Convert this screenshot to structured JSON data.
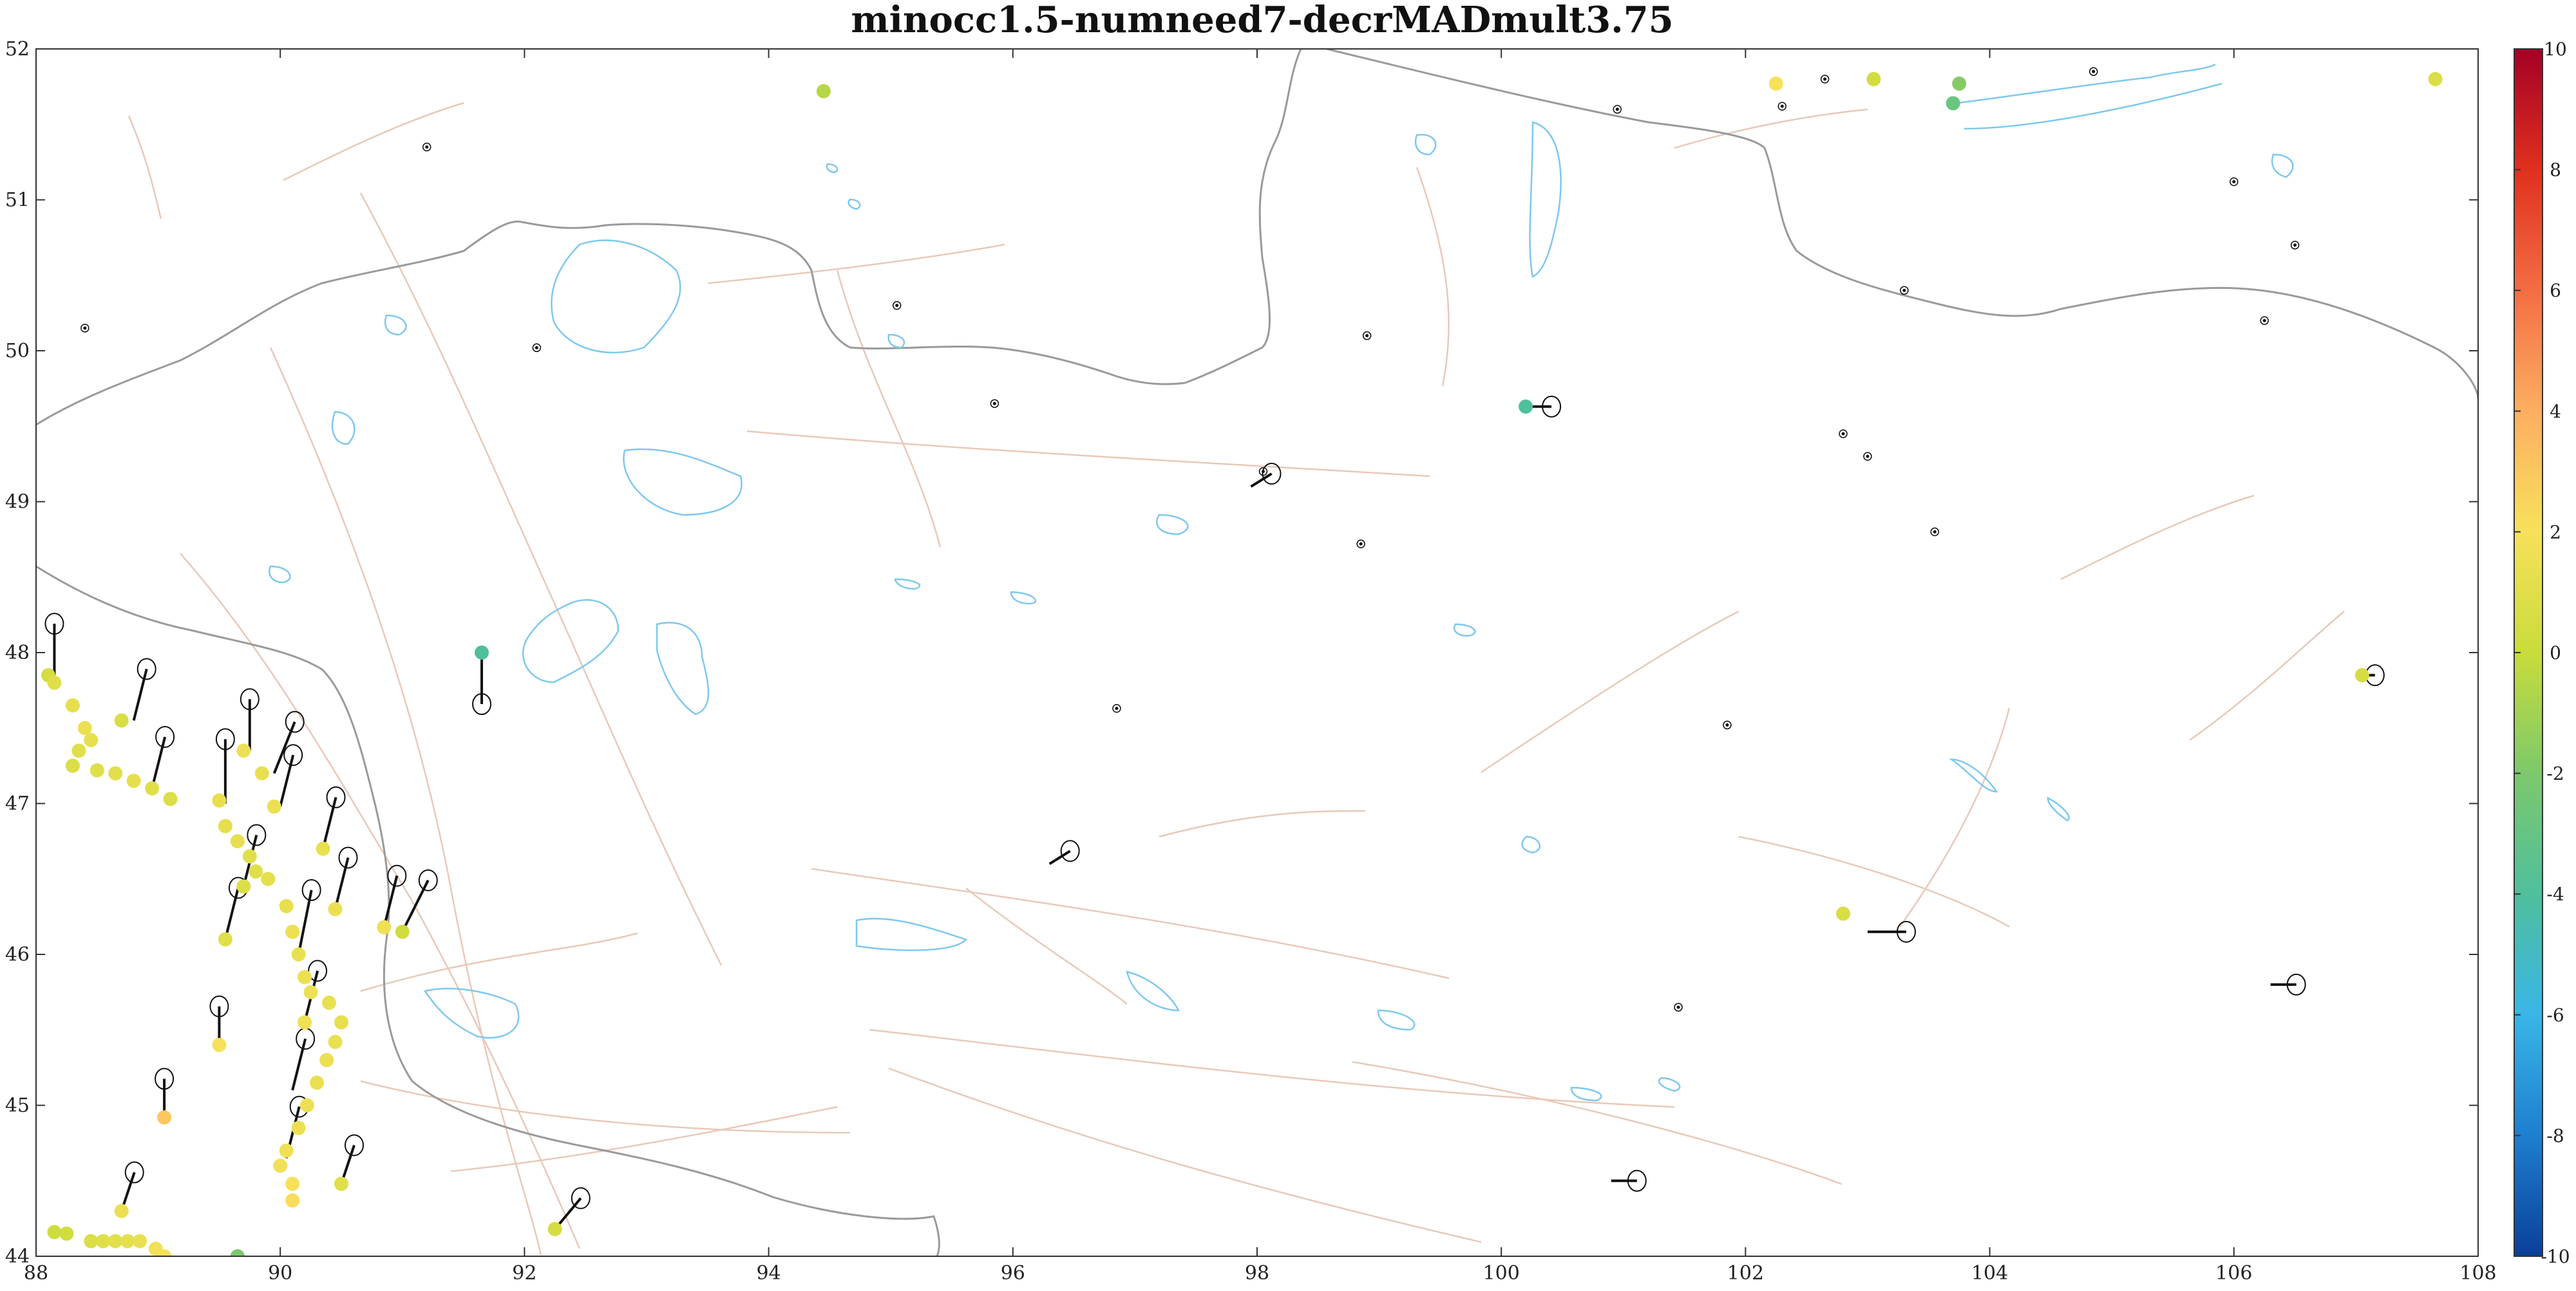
{
  "title": "minocc1.5-numneed7-decrMADmult3.75",
  "map": {
    "lon_range": [
      88,
      108
    ],
    "lat_range": [
      44,
      52
    ],
    "lon_ticks": [
      "88",
      "90",
      "92",
      "94",
      "96",
      "98",
      "100",
      "102",
      "104",
      "106",
      "108"
    ],
    "lat_ticks": [
      "44",
      "45",
      "46",
      "47",
      "48",
      "49",
      "50",
      "51",
      "52"
    ]
  },
  "colorbar": {
    "range": [
      -10,
      10
    ],
    "ticks": [
      "10",
      "8",
      "6",
      "4",
      "2",
      "0",
      "-2",
      "-4",
      "-6",
      "-8",
      "-10"
    ],
    "colors": [
      "#a50026",
      "#e0301e",
      "#f46d43",
      "#fdae61",
      "#f7e15a",
      "#c9dc3a",
      "#7cc96b",
      "#4fbf9c",
      "#38b6e8",
      "#1d7fd0",
      "#0a3f9a"
    ]
  },
  "colors": {
    "border": "#9a9a9a",
    "lakes": "#7fc8ee",
    "faults": "#e8c9b8",
    "vectors": "#111111"
  },
  "chart_data": {
    "type": "scatter",
    "xlabel": "",
    "ylabel": "",
    "xlim": [
      88,
      108
    ],
    "ylim": [
      44,
      52
    ],
    "color_scale": [
      -10,
      10
    ],
    "stations": [
      {
        "lon": 88.1,
        "lat": 47.85,
        "value": 0.5
      },
      {
        "lon": 88.15,
        "lat": 47.8,
        "value": 1.0
      },
      {
        "lon": 88.3,
        "lat": 47.65,
        "value": 1.2
      },
      {
        "lon": 88.4,
        "lat": 47.5,
        "value": 1.5
      },
      {
        "lon": 88.45,
        "lat": 47.42,
        "value": 1.3
      },
      {
        "lon": 88.35,
        "lat": 47.35,
        "value": 1.0
      },
      {
        "lon": 88.3,
        "lat": 47.25,
        "value": 0.8
      },
      {
        "lon": 88.5,
        "lat": 47.22,
        "value": 1.0
      },
      {
        "lon": 88.65,
        "lat": 47.2,
        "value": 1.1
      },
      {
        "lon": 88.8,
        "lat": 47.15,
        "value": 1.2
      },
      {
        "lon": 88.95,
        "lat": 47.1,
        "value": 1.0
      },
      {
        "lon": 89.1,
        "lat": 47.03,
        "value": 0.8
      },
      {
        "lon": 88.7,
        "lat": 47.55,
        "value": 0.6
      },
      {
        "lon": 89.7,
        "lat": 47.35,
        "value": 1.6
      },
      {
        "lon": 89.85,
        "lat": 47.2,
        "value": 1.4
      },
      {
        "lon": 89.5,
        "lat": 47.02,
        "value": 1.3
      },
      {
        "lon": 89.95,
        "lat": 46.98,
        "value": 1.5
      },
      {
        "lon": 89.55,
        "lat": 46.85,
        "value": 1.2
      },
      {
        "lon": 89.65,
        "lat": 46.75,
        "value": 1.3
      },
      {
        "lon": 89.75,
        "lat": 46.65,
        "value": 1.1
      },
      {
        "lon": 89.8,
        "lat": 46.55,
        "value": 1.0
      },
      {
        "lon": 89.9,
        "lat": 46.5,
        "value": 1.2
      },
      {
        "lon": 89.7,
        "lat": 46.45,
        "value": 0.9
      },
      {
        "lon": 90.35,
        "lat": 46.7,
        "value": 1.4
      },
      {
        "lon": 90.05,
        "lat": 46.32,
        "value": 1.3
      },
      {
        "lon": 90.1,
        "lat": 46.15,
        "value": 1.5
      },
      {
        "lon": 90.15,
        "lat": 46.0,
        "value": 1.4
      },
      {
        "lon": 90.2,
        "lat": 45.85,
        "value": 1.5
      },
      {
        "lon": 90.25,
        "lat": 45.75,
        "value": 1.6
      },
      {
        "lon": 90.45,
        "lat": 46.3,
        "value": 1.5
      },
      {
        "lon": 89.55,
        "lat": 46.1,
        "value": 1.0
      },
      {
        "lon": 90.85,
        "lat": 46.18,
        "value": 1.7
      },
      {
        "lon": 91.0,
        "lat": 46.15,
        "value": 0.3
      },
      {
        "lon": 90.4,
        "lat": 45.68,
        "value": 1.4
      },
      {
        "lon": 90.5,
        "lat": 45.55,
        "value": 1.3
      },
      {
        "lon": 90.45,
        "lat": 45.42,
        "value": 1.4
      },
      {
        "lon": 90.38,
        "lat": 45.3,
        "value": 1.5
      },
      {
        "lon": 90.3,
        "lat": 45.15,
        "value": 1.4
      },
      {
        "lon": 90.22,
        "lat": 45.0,
        "value": 1.6
      },
      {
        "lon": 90.15,
        "lat": 44.85,
        "value": 1.5
      },
      {
        "lon": 90.05,
        "lat": 44.7,
        "value": 1.7
      },
      {
        "lon": 90.0,
        "lat": 44.6,
        "value": 1.8
      },
      {
        "lon": 90.2,
        "lat": 45.55,
        "value": 1.7
      },
      {
        "lon": 89.5,
        "lat": 45.4,
        "value": 2.0
      },
      {
        "lon": 89.05,
        "lat": 44.92,
        "value": 3.0
      },
      {
        "lon": 90.1,
        "lat": 44.48,
        "value": 2.0
      },
      {
        "lon": 90.1,
        "lat": 44.37,
        "value": 2.2
      },
      {
        "lon": 90.5,
        "lat": 44.48,
        "value": 1.0
      },
      {
        "lon": 88.15,
        "lat": 44.16,
        "value": 0.2
      },
      {
        "lon": 88.25,
        "lat": 44.15,
        "value": 0.3
      },
      {
        "lon": 88.45,
        "lat": 44.1,
        "value": 0.8
      },
      {
        "lon": 88.55,
        "lat": 44.1,
        "value": 1.0
      },
      {
        "lon": 88.65,
        "lat": 44.1,
        "value": 1.1
      },
      {
        "lon": 88.75,
        "lat": 44.1,
        "value": 1.2
      },
      {
        "lon": 88.85,
        "lat": 44.1,
        "value": 1.4
      },
      {
        "lon": 88.98,
        "lat": 44.05,
        "value": 1.8
      },
      {
        "lon": 89.05,
        "lat": 44.0,
        "value": 2.0
      },
      {
        "lon": 88.7,
        "lat": 44.3,
        "value": 1.5
      },
      {
        "lon": 89.65,
        "lat": 44.0,
        "value": -2.0
      },
      {
        "lon": 92.25,
        "lat": 44.18,
        "value": 0.5
      },
      {
        "lon": 91.65,
        "lat": 48.0,
        "value": -4.0
      },
      {
        "lon": 94.45,
        "lat": 51.72,
        "value": -0.5
      },
      {
        "lon": 100.2,
        "lat": 49.63,
        "value": -4.0
      },
      {
        "lon": 102.25,
        "lat": 51.77,
        "value": 2.0
      },
      {
        "lon": 103.05,
        "lat": 51.8,
        "value": 0.4
      },
      {
        "lon": 103.7,
        "lat": 51.64,
        "value": -2.8
      },
      {
        "lon": 103.75,
        "lat": 51.77,
        "value": -1.8
      },
      {
        "lon": 107.65,
        "lat": 51.8,
        "value": 0.8
      },
      {
        "lon": 102.8,
        "lat": 46.27,
        "value": 0.7
      },
      {
        "lon": 107.05,
        "lat": 47.85,
        "value": 0.5
      }
    ],
    "velocity_vectors": [
      {
        "lon": 88.15,
        "lat": 47.85,
        "dx": 0.0,
        "dy": 0.2
      },
      {
        "lon": 88.8,
        "lat": 47.55,
        "dx": 0.05,
        "dy": 0.2
      },
      {
        "lon": 88.95,
        "lat": 47.1,
        "dx": 0.05,
        "dy": 0.2
      },
      {
        "lon": 89.75,
        "lat": 47.35,
        "dx": 0.0,
        "dy": 0.2
      },
      {
        "lon": 89.95,
        "lat": 47.2,
        "dx": 0.08,
        "dy": 0.2
      },
      {
        "lon": 89.55,
        "lat": 47.0,
        "dx": 0.0,
        "dy": 0.25
      },
      {
        "lon": 90.0,
        "lat": 46.98,
        "dx": 0.05,
        "dy": 0.2
      },
      {
        "lon": 89.7,
        "lat": 46.45,
        "dx": 0.05,
        "dy": 0.2
      },
      {
        "lon": 90.35,
        "lat": 46.7,
        "dx": 0.05,
        "dy": 0.2
      },
      {
        "lon": 90.45,
        "lat": 46.3,
        "dx": 0.05,
        "dy": 0.2
      },
      {
        "lon": 89.55,
        "lat": 46.1,
        "dx": 0.05,
        "dy": 0.2
      },
      {
        "lon": 90.85,
        "lat": 46.18,
        "dx": 0.05,
        "dy": 0.2
      },
      {
        "lon": 91.0,
        "lat": 46.15,
        "dx": 0.1,
        "dy": 0.2
      },
      {
        "lon": 90.15,
        "lat": 46.0,
        "dx": 0.05,
        "dy": 0.25
      },
      {
        "lon": 90.2,
        "lat": 45.55,
        "dx": 0.05,
        "dy": 0.2
      },
      {
        "lon": 89.5,
        "lat": 45.4,
        "dx": 0.0,
        "dy": 0.15
      },
      {
        "lon": 90.1,
        "lat": 45.1,
        "dx": 0.05,
        "dy": 0.2
      },
      {
        "lon": 89.05,
        "lat": 44.92,
        "dx": 0.0,
        "dy": 0.15
      },
      {
        "lon": 90.05,
        "lat": 44.65,
        "dx": 0.05,
        "dy": 0.2
      },
      {
        "lon": 90.5,
        "lat": 44.48,
        "dx": 0.05,
        "dy": 0.15
      },
      {
        "lon": 88.7,
        "lat": 44.3,
        "dx": 0.05,
        "dy": 0.15
      },
      {
        "lon": 92.25,
        "lat": 44.18,
        "dx": 0.1,
        "dy": 0.12
      },
      {
        "lon": 91.65,
        "lat": 48.0,
        "dx": 0.0,
        "dy": -0.2
      },
      {
        "lon": 100.2,
        "lat": 49.63,
        "dx": 0.1,
        "dy": 0.0
      },
      {
        "lon": 97.95,
        "lat": 49.1,
        "dx": 0.08,
        "dy": 0.05
      },
      {
        "lon": 96.3,
        "lat": 46.6,
        "dx": 0.08,
        "dy": 0.05
      },
      {
        "lon": 103.0,
        "lat": 46.15,
        "dx": 0.15,
        "dy": 0.0
      },
      {
        "lon": 100.9,
        "lat": 44.5,
        "dx": 0.1,
        "dy": 0.0
      },
      {
        "lon": 107.05,
        "lat": 47.85,
        "dx": 0.05,
        "dy": 0.0
      },
      {
        "lon": 106.3,
        "lat": 45.8,
        "dx": 0.1,
        "dy": 0.0
      }
    ],
    "small_sites": [
      [
        91.2,
        51.35
      ],
      [
        95.05,
        50.3
      ],
      [
        88.4,
        50.15
      ],
      [
        92.1,
        50.02
      ],
      [
        95.85,
        49.65
      ],
      [
        98.9,
        50.1
      ],
      [
        98.05,
        49.2
      ],
      [
        98.85,
        48.72
      ],
      [
        96.85,
        47.63
      ],
      [
        101.85,
        47.52
      ],
      [
        102.8,
        49.45
      ],
      [
        103.0,
        49.3
      ],
      [
        103.55,
        48.8
      ],
      [
        103.3,
        50.4
      ],
      [
        104.85,
        51.85
      ],
      [
        106.0,
        51.12
      ],
      [
        106.5,
        50.7
      ],
      [
        106.25,
        50.2
      ],
      [
        102.3,
        51.62
      ],
      [
        102.65,
        51.8
      ],
      [
        100.95,
        51.6
      ],
      [
        101.45,
        45.65
      ]
    ]
  }
}
